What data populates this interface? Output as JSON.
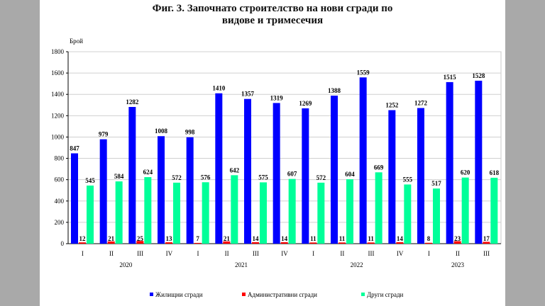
{
  "chart_data": {
    "type": "bar",
    "title_line1": "Фиг. 3. Започнато строителство на нови сгради по",
    "title_line2": "видове и тримесечия",
    "ylabel": "Брой",
    "ylim": [
      0,
      1800
    ],
    "yticks": [
      0,
      200,
      400,
      600,
      800,
      1000,
      1200,
      1400,
      1600,
      1800
    ],
    "grid": true,
    "legend_position": "bottom",
    "categories": [
      "I",
      "II",
      "III",
      "IV",
      "I",
      "II",
      "III",
      "IV",
      "I",
      "II",
      "III",
      "IV",
      "I",
      "II",
      "III"
    ],
    "years": [
      {
        "label": "2020",
        "quarters": 4
      },
      {
        "label": "2021",
        "quarters": 4
      },
      {
        "label": "2022",
        "quarters": 4
      },
      {
        "label": "2023",
        "quarters": 3
      }
    ],
    "series": [
      {
        "name": "Жилищни сгради",
        "color": "#0000ff",
        "values": [
          847,
          979,
          1282,
          1008,
          998,
          1410,
          1357,
          1319,
          1269,
          1388,
          1559,
          1252,
          1272,
          1515,
          1528
        ]
      },
      {
        "name": "Административни сгради",
        "color": "#ff0000",
        "values": [
          12,
          21,
          25,
          13,
          7,
          21,
          14,
          14,
          11,
          11,
          11,
          14,
          8,
          23,
          17
        ]
      },
      {
        "name": "Други сгради",
        "color": "#00ff99",
        "values": [
          545,
          584,
          624,
          572,
          576,
          642,
          575,
          607,
          572,
          604,
          669,
          555,
          517,
          620,
          618
        ]
      }
    ]
  }
}
